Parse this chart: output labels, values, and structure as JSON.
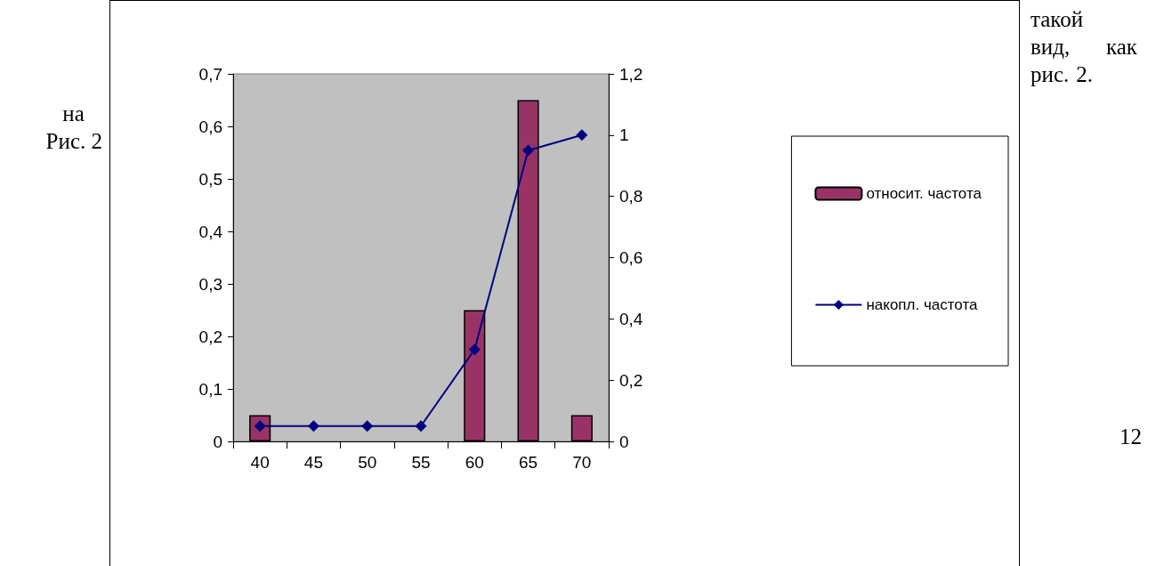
{
  "chart_data": {
    "type": "bar",
    "categories": [
      "40",
      "45",
      "50",
      "55",
      "60",
      "65",
      "70"
    ],
    "series": [
      {
        "name": "относит. частота",
        "color": "#993366",
        "values": [
          0.05,
          0,
          0,
          0,
          0.25,
          0.65,
          0.05
        ]
      },
      {
        "name": "накопл. частота",
        "type": "line",
        "axis": "y2",
        "color": "#000080",
        "values": [
          0.05,
          0.05,
          0.05,
          0.05,
          0.3,
          0.95,
          1.0
        ]
      }
    ],
    "ylim": [
      0,
      0.7
    ],
    "yticks": [
      0,
      {
        "value": 0.1,
        "label": "0,1"
      },
      {
        "value": 0.2,
        "label": "0,2"
      },
      {
        "value": 0.3,
        "label": "0,3"
      },
      {
        "value": 0.4,
        "label": "0,4"
      },
      {
        "value": 0.5,
        "label": "0,5"
      },
      {
        "value": 0.6,
        "label": "0,6"
      },
      {
        "value": 0.7,
        "label": "0,7"
      }
    ],
    "y2lim": [
      0,
      1.2
    ],
    "y2ticks": [
      0,
      {
        "value": 0.2,
        "label": "0,2"
      },
      {
        "value": 0.4,
        "label": "0,4"
      },
      {
        "value": 0.6,
        "label": "0,6"
      },
      {
        "value": 0.8,
        "label": "0,8"
      },
      1,
      {
        "value": 1.2,
        "label": "1,2"
      }
    ],
    "marker": "diamond",
    "grid": false,
    "legend": "right",
    "annotations": [
      "на Рис. 2",
      "такой вид, как рис. 2.",
      "12"
    ]
  }
}
